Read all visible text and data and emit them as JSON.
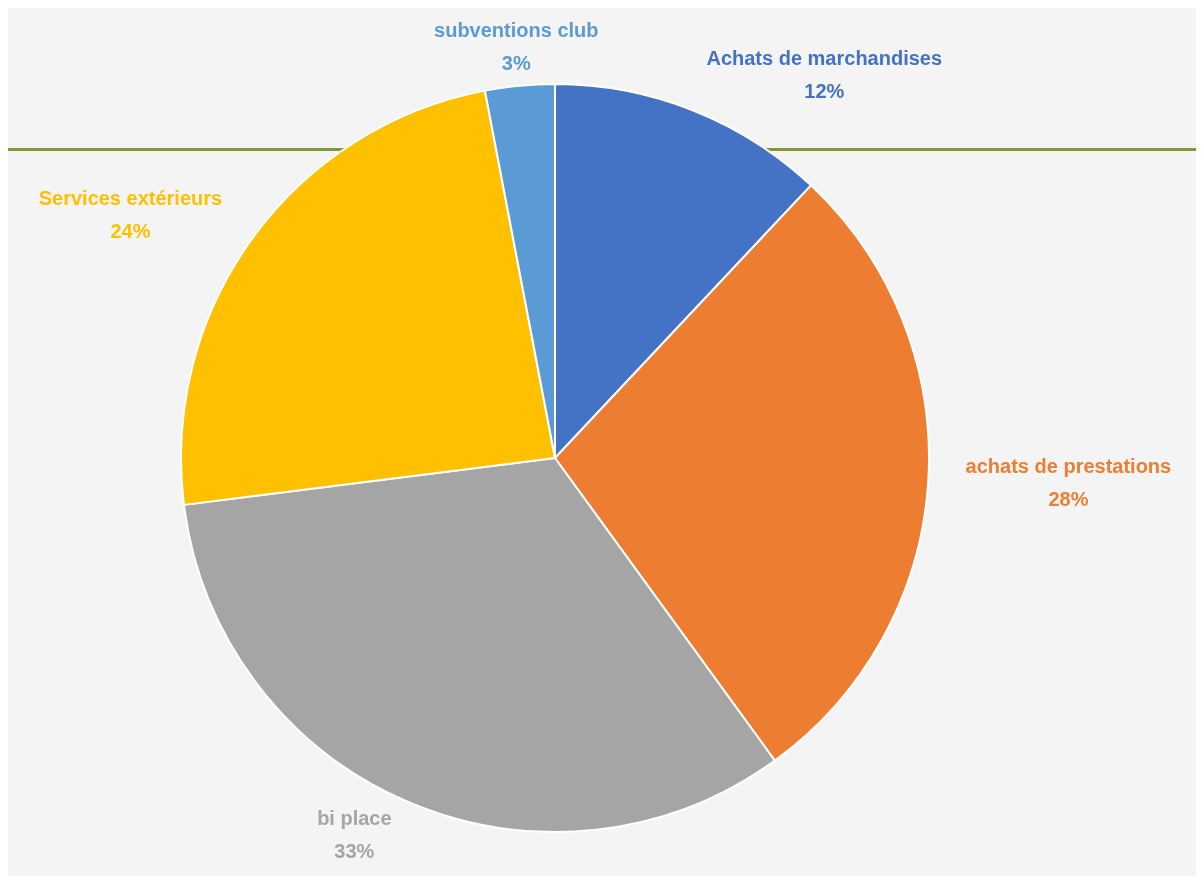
{
  "chart_data": {
    "type": "pie",
    "categories": [
      "Achats de marchandises",
      "achats de prestations",
      "bi place",
      "Services extérieurs",
      "subventions club"
    ],
    "values": [
      12,
      28,
      33,
      24,
      3
    ],
    "value_labels": [
      "12%",
      "28%",
      "33%",
      "24%",
      "3%"
    ],
    "colors": [
      "#4472c4",
      "#ed7d31",
      "#a5a5a5",
      "#ffc000",
      "#5b9bd5"
    ],
    "legend": false
  }
}
